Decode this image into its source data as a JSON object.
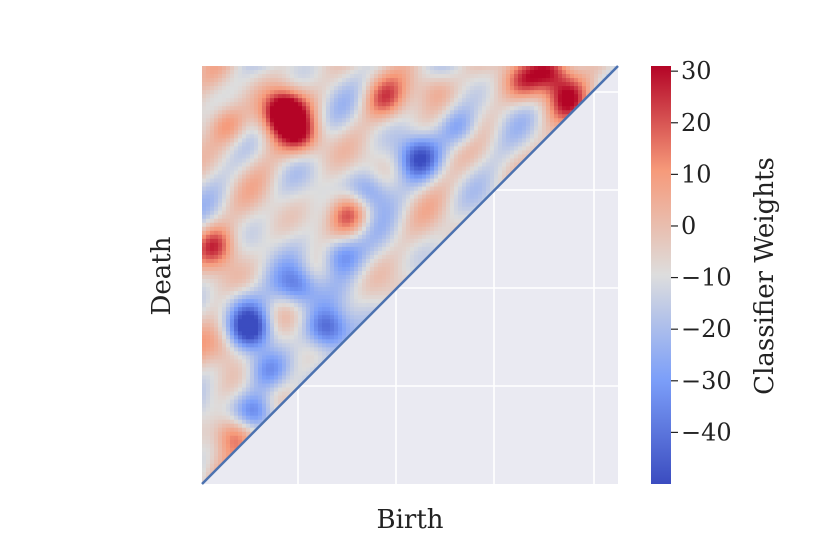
{
  "chart_data": {
    "type": "heatmap",
    "title": "",
    "xlabel": "Birth",
    "ylabel": "Death",
    "colorbar": {
      "label": "Classifier Weights",
      "ticks": [
        30,
        20,
        10,
        0,
        -10,
        -20,
        -30,
        -40
      ],
      "tick_labels": [
        "30",
        "20",
        "10",
        "0",
        "−10",
        "−20",
        "−30",
        "−40"
      ],
      "range": [
        -50,
        31
      ],
      "colormap": "coolwarm"
    },
    "domain": "upper triangle (death > birth); lower triangle empty",
    "grid": true,
    "diagonal_line_color": "#4c72b0",
    "background_color": "#eaeaf2",
    "hotspots": [
      {
        "birth": 0.2,
        "death": 0.9,
        "value": 30
      },
      {
        "birth": 0.18,
        "death": 0.87,
        "value": 12
      },
      {
        "birth": 0.09,
        "death": 0.43,
        "value": -22
      },
      {
        "birth": 0.06,
        "death": 0.86,
        "value": 14
      },
      {
        "birth": 0.24,
        "death": 0.83,
        "value": 22
      },
      {
        "birth": 0.44,
        "death": 0.92,
        "value": 12
      },
      {
        "birth": 0.56,
        "death": 0.95,
        "value": 8
      },
      {
        "birth": 0.78,
        "death": 0.96,
        "value": 16
      },
      {
        "birth": 0.84,
        "death": 0.99,
        "value": 30
      },
      {
        "birth": 0.88,
        "death": 0.92,
        "value": 18
      },
      {
        "birth": 0.35,
        "death": 0.65,
        "value": 20
      },
      {
        "birth": 0.03,
        "death": 0.57,
        "value": 20
      },
      {
        "birth": 0.23,
        "death": 0.47,
        "value": -40
      },
      {
        "birth": 0.3,
        "death": 0.37,
        "value": -45
      },
      {
        "birth": 0.12,
        "death": 0.37,
        "value": -48
      },
      {
        "birth": 0.13,
        "death": 0.17,
        "value": -42
      },
      {
        "birth": 0.07,
        "death": 0.12,
        "value": 20
      },
      {
        "birth": 0.33,
        "death": 0.55,
        "value": -38
      },
      {
        "birth": 0.4,
        "death": 0.7,
        "value": -35
      },
      {
        "birth": 0.52,
        "death": 0.78,
        "value": -40
      },
      {
        "birth": 0.62,
        "death": 0.85,
        "value": -30
      },
      {
        "birth": 0.16,
        "death": 0.27,
        "value": -30
      },
      {
        "birth": 0.05,
        "death": 0.33,
        "value": 10
      }
    ]
  }
}
